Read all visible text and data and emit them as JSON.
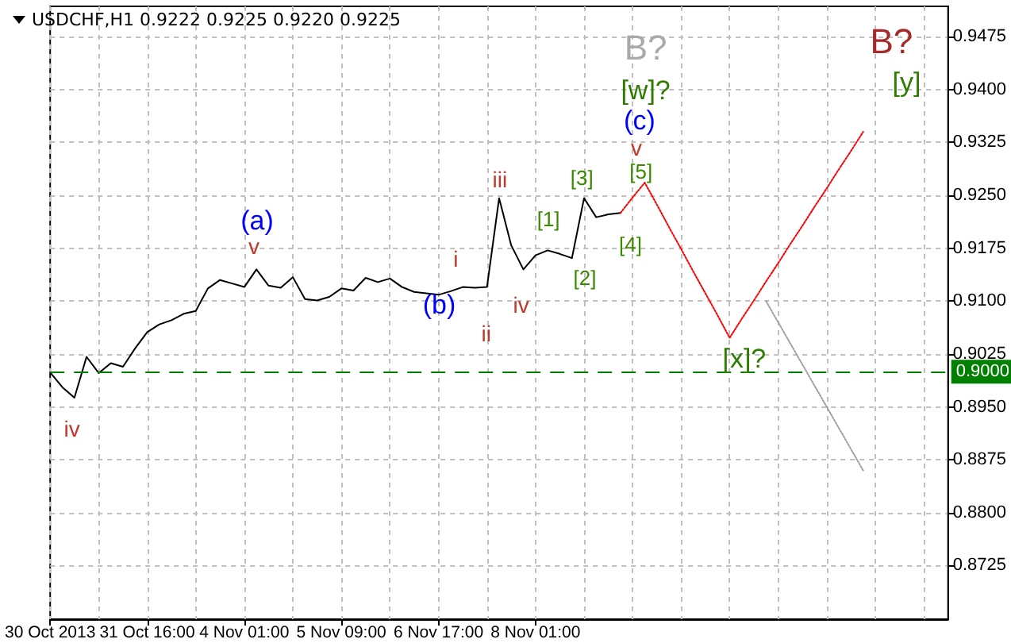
{
  "chart_data": {
    "type": "line",
    "title": "USDCHF,H1 0.9222 0.9225 0.9220 0.9225",
    "categories": [
      "30 Oct 2013",
      null,
      null,
      null,
      null,
      null,
      null,
      null,
      "31 Oct 16:00",
      null,
      null,
      null,
      null,
      null,
      null,
      null,
      "4 Nov 01:00",
      null,
      null,
      null,
      null,
      null,
      null,
      null,
      "5 Nov 09:00",
      null,
      null,
      null,
      null,
      null,
      null,
      null,
      "6 Nov 17:00",
      null,
      null,
      null,
      null,
      null,
      null,
      null,
      "8 Nov 01:00",
      null,
      null,
      null,
      null,
      null,
      null,
      null,
      null,
      null,
      null,
      null,
      null,
      null,
      null,
      null,
      null,
      null,
      null,
      null,
      null,
      null,
      null,
      null,
      null,
      null,
      null,
      null,
      null,
      null,
      null,
      null,
      null,
      null,
      null
    ],
    "ylim": [
      0.8649,
      0.9518
    ],
    "yticks": [
      0.8725,
      {
        "value": 0.88,
        "label": "0.8800"
      },
      0.8875,
      {
        "value": 0.895,
        "label": "0.8950"
      },
      0.9025,
      {
        "value": 0.91,
        "label": "0.9100"
      },
      0.9175,
      {
        "value": 0.925,
        "label": "0.9250"
      },
      0.9325,
      {
        "value": 0.94,
        "label": "0.9400"
      },
      0.9475
    ],
    "grid": true,
    "marker": "none",
    "series": [
      {
        "color": "#000000",
        "line_style": "solid",
        "values": [
          0.8999,
          0.8978,
          0.8963,
          0.9021,
          0.8998,
          0.9012,
          0.9007,
          0.9033,
          0.9056,
          0.9067,
          0.9073,
          0.9082,
          0.9086,
          0.9118,
          0.913,
          0.9125,
          0.912,
          0.9145,
          0.9122,
          0.9119,
          0.9134,
          0.9103,
          0.9101,
          0.9106,
          0.9118,
          0.9115,
          0.9133,
          0.9127,
          0.9132,
          0.912,
          0.9113,
          0.9111,
          0.9109,
          0.9114,
          0.912,
          0.9119,
          0.912,
          0.9246,
          0.9179,
          0.9145,
          0.9165,
          0.9172,
          0.9167,
          0.9161,
          0.9246,
          0.9219,
          0.9223,
          0.9225,
          null,
          null,
          null,
          null,
          null,
          null,
          null,
          null,
          null,
          null,
          null,
          null,
          null,
          null,
          null,
          null,
          null,
          null,
          null,
          null,
          null,
          null,
          null,
          null,
          null,
          null,
          null
        ]
      },
      {
        "color": "#ff0000",
        "line_style": "dotted",
        "values": [
          null,
          null,
          null,
          null,
          null,
          null,
          null,
          null,
          null,
          null,
          null,
          null,
          null,
          null,
          null,
          null,
          null,
          null,
          null,
          null,
          null,
          null,
          null,
          null,
          null,
          null,
          null,
          null,
          null,
          null,
          null,
          null,
          null,
          null,
          null,
          null,
          null,
          null,
          null,
          null,
          null,
          null,
          null,
          null,
          null,
          null,
          null,
          0.9225,
          0.9247,
          0.9268,
          0.9237,
          0.9205,
          0.9174,
          0.9142,
          0.9111,
          0.908,
          0.9048,
          0.9075,
          0.9101,
          0.9128,
          0.9154,
          0.9181,
          0.9207,
          0.9234,
          0.926,
          0.9287,
          0.9313,
          0.934,
          null,
          null,
          null,
          null,
          null,
          null,
          null
        ]
      },
      {
        "color": "#a0a0a0",
        "line_style": "dotted",
        "values": [
          null,
          null,
          null,
          null,
          null,
          null,
          null,
          null,
          null,
          null,
          null,
          null,
          null,
          null,
          null,
          null,
          null,
          null,
          null,
          null,
          null,
          null,
          null,
          null,
          null,
          null,
          null,
          null,
          null,
          null,
          null,
          null,
          null,
          null,
          null,
          null,
          null,
          null,
          null,
          null,
          null,
          null,
          null,
          null,
          null,
          null,
          null,
          null,
          null,
          null,
          null,
          null,
          null,
          null,
          null,
          null,
          null,
          null,
          null,
          0.91,
          0.907,
          0.904,
          0.901,
          0.898,
          0.895,
          0.892,
          0.889,
          0.886,
          null,
          null,
          null,
          null,
          null,
          null,
          null
        ]
      }
    ],
    "ref_lines": [
      {
        "axis": "y",
        "value": 0.9,
        "label": "0.9000",
        "color": "#008000",
        "line_style": "dashed"
      }
    ],
    "annotations": [
      "iv",
      "(a)",
      "v",
      "(b)",
      "i",
      "ii",
      "iii",
      "iv",
      "[1]",
      "[2]",
      "[3]",
      "[4]",
      "[5]",
      "v",
      "(c)",
      "[w]?",
      "B?",
      "B?",
      "[y]",
      "[x]?"
    ]
  }
}
